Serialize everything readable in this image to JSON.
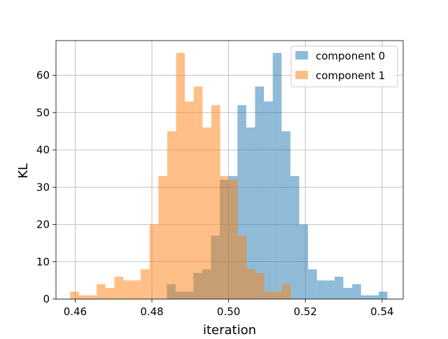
{
  "chart_data": {
    "type": "bar",
    "xlabel": "iteration",
    "ylabel": "KL",
    "xlim": [
      0.455,
      0.5455
    ],
    "ylim": [
      0,
      69.3
    ],
    "grid": true,
    "legend_position": "top-right",
    "x_ticks": [
      0.46,
      0.48,
      0.5,
      0.52,
      0.54
    ],
    "x_tick_labels": [
      "0.46",
      "0.48",
      "0.50",
      "0.52",
      "0.54"
    ],
    "y_ticks": [
      0,
      10,
      20,
      30,
      40,
      50,
      60
    ],
    "y_tick_labels": [
      "0",
      "10",
      "20",
      "30",
      "40",
      "50",
      "60"
    ],
    "colors": {
      "component_0": "#1f77b4",
      "component_1": "#ff7f0e",
      "bar_opacity": 0.5,
      "grid": "#b0b0b0",
      "axes": "#000000"
    },
    "series": [
      {
        "name": "component 0",
        "bins": [
          {
            "start": 0.4839,
            "end": 0.4862,
            "value": 4
          },
          {
            "start": 0.4862,
            "end": 0.4885,
            "value": 2
          },
          {
            "start": 0.4885,
            "end": 0.4908,
            "value": 2
          },
          {
            "start": 0.4908,
            "end": 0.4931,
            "value": 7
          },
          {
            "start": 0.4931,
            "end": 0.4954,
            "value": 8
          },
          {
            "start": 0.4954,
            "end": 0.4977,
            "value": 17
          },
          {
            "start": 0.4977,
            "end": 0.5,
            "value": 32
          },
          {
            "start": 0.5,
            "end": 0.5023,
            "value": 33
          },
          {
            "start": 0.5023,
            "end": 0.5046,
            "value": 52
          },
          {
            "start": 0.5046,
            "end": 0.5069,
            "value": 46
          },
          {
            "start": 0.5069,
            "end": 0.5092,
            "value": 57
          },
          {
            "start": 0.5092,
            "end": 0.5115,
            "value": 53
          },
          {
            "start": 0.5115,
            "end": 0.5138,
            "value": 66
          },
          {
            "start": 0.5138,
            "end": 0.5161,
            "value": 45
          },
          {
            "start": 0.5161,
            "end": 0.5184,
            "value": 33
          },
          {
            "start": 0.5184,
            "end": 0.5207,
            "value": 20
          },
          {
            "start": 0.5207,
            "end": 0.523,
            "value": 8
          },
          {
            "start": 0.523,
            "end": 0.5253,
            "value": 5
          },
          {
            "start": 0.5253,
            "end": 0.5276,
            "value": 5
          },
          {
            "start": 0.5276,
            "end": 0.5299,
            "value": 6
          },
          {
            "start": 0.5299,
            "end": 0.5322,
            "value": 3
          },
          {
            "start": 0.5322,
            "end": 0.5345,
            "value": 4
          },
          {
            "start": 0.5345,
            "end": 0.5368,
            "value": 1
          },
          {
            "start": 0.5368,
            "end": 0.5391,
            "value": 1
          },
          {
            "start": 0.5391,
            "end": 0.5414,
            "value": 2
          }
        ]
      },
      {
        "name": "component 1",
        "bins": [
          {
            "start": 0.4587,
            "end": 0.461,
            "value": 2
          },
          {
            "start": 0.461,
            "end": 0.4633,
            "value": 1
          },
          {
            "start": 0.4633,
            "end": 0.4656,
            "value": 1
          },
          {
            "start": 0.4656,
            "end": 0.4679,
            "value": 4
          },
          {
            "start": 0.4679,
            "end": 0.4702,
            "value": 3
          },
          {
            "start": 0.4702,
            "end": 0.4725,
            "value": 6
          },
          {
            "start": 0.4725,
            "end": 0.4748,
            "value": 5
          },
          {
            "start": 0.4748,
            "end": 0.4771,
            "value": 5
          },
          {
            "start": 0.4771,
            "end": 0.4794,
            "value": 8
          },
          {
            "start": 0.4794,
            "end": 0.4817,
            "value": 20
          },
          {
            "start": 0.4817,
            "end": 0.484,
            "value": 33
          },
          {
            "start": 0.484,
            "end": 0.4863,
            "value": 45
          },
          {
            "start": 0.4863,
            "end": 0.4886,
            "value": 66
          },
          {
            "start": 0.4886,
            "end": 0.4909,
            "value": 53
          },
          {
            "start": 0.4909,
            "end": 0.4932,
            "value": 57
          },
          {
            "start": 0.4932,
            "end": 0.4955,
            "value": 46
          },
          {
            "start": 0.4955,
            "end": 0.4978,
            "value": 52
          },
          {
            "start": 0.4978,
            "end": 0.5001,
            "value": 33
          },
          {
            "start": 0.5001,
            "end": 0.5024,
            "value": 32
          },
          {
            "start": 0.5024,
            "end": 0.5047,
            "value": 17
          },
          {
            "start": 0.5047,
            "end": 0.507,
            "value": 8
          },
          {
            "start": 0.507,
            "end": 0.5093,
            "value": 7
          },
          {
            "start": 0.5093,
            "end": 0.5116,
            "value": 2
          },
          {
            "start": 0.5116,
            "end": 0.5139,
            "value": 2
          },
          {
            "start": 0.5139,
            "end": 0.5162,
            "value": 4
          }
        ]
      }
    ]
  }
}
